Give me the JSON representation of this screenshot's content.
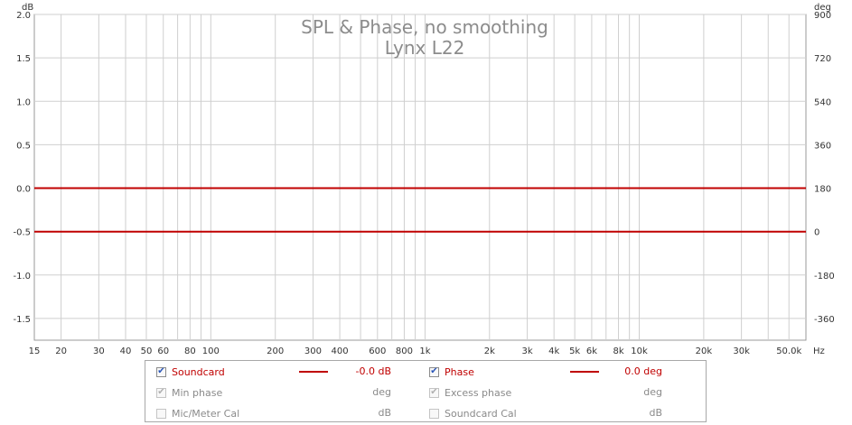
{
  "chart_data": {
    "type": "line",
    "title": "SPL & Phase, no smoothing",
    "subtitle": "Lynx L22",
    "x_axis": {
      "scale": "log",
      "unit": "Hz",
      "range": [
        15,
        60000
      ],
      "tick_labels": [
        {
          "value": 15,
          "label": "15"
        },
        {
          "value": 20,
          "label": "20"
        },
        {
          "value": 30,
          "label": "30"
        },
        {
          "value": 40,
          "label": "40"
        },
        {
          "value": 50,
          "label": "50"
        },
        {
          "value": 60,
          "label": "60"
        },
        {
          "value": 80,
          "label": "80"
        },
        {
          "value": 100,
          "label": "100"
        },
        {
          "value": 200,
          "label": "200"
        },
        {
          "value": 300,
          "label": "300"
        },
        {
          "value": 400,
          "label": "400"
        },
        {
          "value": 600,
          "label": "600"
        },
        {
          "value": 800,
          "label": "800"
        },
        {
          "value": 1000,
          "label": "1k"
        },
        {
          "value": 2000,
          "label": "2k"
        },
        {
          "value": 3000,
          "label": "3k"
        },
        {
          "value": 4000,
          "label": "4k"
        },
        {
          "value": 5000,
          "label": "5k"
        },
        {
          "value": 6000,
          "label": "6k"
        },
        {
          "value": 8000,
          "label": "8k"
        },
        {
          "value": 10000,
          "label": "10k"
        },
        {
          "value": 20000,
          "label": "20k"
        },
        {
          "value": 30000,
          "label": "30k"
        },
        {
          "value": 50000,
          "label": "50.0k"
        }
      ],
      "gridlines": [
        20,
        30,
        40,
        50,
        60,
        70,
        80,
        90,
        100,
        200,
        300,
        400,
        500,
        600,
        700,
        800,
        900,
        1000,
        2000,
        3000,
        4000,
        5000,
        6000,
        7000,
        8000,
        9000,
        10000,
        20000,
        30000,
        40000,
        50000
      ]
    },
    "y_left": {
      "unit": "dB",
      "range": [
        -1.75,
        2.0
      ],
      "ticks": [
        {
          "value": 2.0,
          "label": "2.0"
        },
        {
          "value": 1.5,
          "label": "1.5"
        },
        {
          "value": 1.0,
          "label": "1.0"
        },
        {
          "value": 0.5,
          "label": "0.5"
        },
        {
          "value": 0.0,
          "label": "0.0"
        },
        {
          "value": -0.5,
          "label": "-0.5"
        },
        {
          "value": -1.0,
          "label": "-1.0"
        },
        {
          "value": -1.5,
          "label": "-1.5"
        }
      ]
    },
    "y_right": {
      "unit": "deg",
      "ticks": [
        {
          "value": 900,
          "label": "900"
        },
        {
          "value": 720,
          "label": "720"
        },
        {
          "value": 540,
          "label": "540"
        },
        {
          "value": 360,
          "label": "360"
        },
        {
          "value": 180,
          "label": "180"
        },
        {
          "value": 0,
          "label": "0"
        },
        {
          "value": -180,
          "label": "-180"
        },
        {
          "value": -360,
          "label": "-360"
        }
      ]
    },
    "grid": true,
    "legend_placement": "bottom",
    "series": [
      {
        "name": "Soundcard",
        "axis": "left",
        "x": [
          15,
          60000
        ],
        "y": [
          0.0,
          0.0
        ],
        "color": "#c00000"
      },
      {
        "name": "Phase",
        "axis": "right",
        "x": [
          15,
          60000
        ],
        "y": [
          0.0,
          0.0
        ],
        "color": "#c00000"
      }
    ]
  },
  "legend": {
    "rows": [
      [
        {
          "label": "Soundcard",
          "checked": true,
          "enabled": true,
          "value": "-0.0 dB",
          "swatch": true
        },
        {
          "label": "Phase",
          "checked": true,
          "enabled": true,
          "value": "0.0 deg",
          "swatch": true
        }
      ],
      [
        {
          "label": "Min phase",
          "checked": true,
          "enabled": false,
          "value": "deg",
          "swatch": false
        },
        {
          "label": "Excess phase",
          "checked": true,
          "enabled": false,
          "value": "deg",
          "swatch": false
        }
      ],
      [
        {
          "label": "Mic/Meter Cal",
          "checked": false,
          "enabled": false,
          "value": "dB",
          "swatch": false
        },
        {
          "label": "Soundcard Cal",
          "checked": false,
          "enabled": false,
          "value": "dB",
          "swatch": false
        }
      ]
    ]
  },
  "colors": {
    "series": "#c00000",
    "grid": "#d0d0d0",
    "axis_text": "#333333",
    "title": "#8c8c8c"
  }
}
